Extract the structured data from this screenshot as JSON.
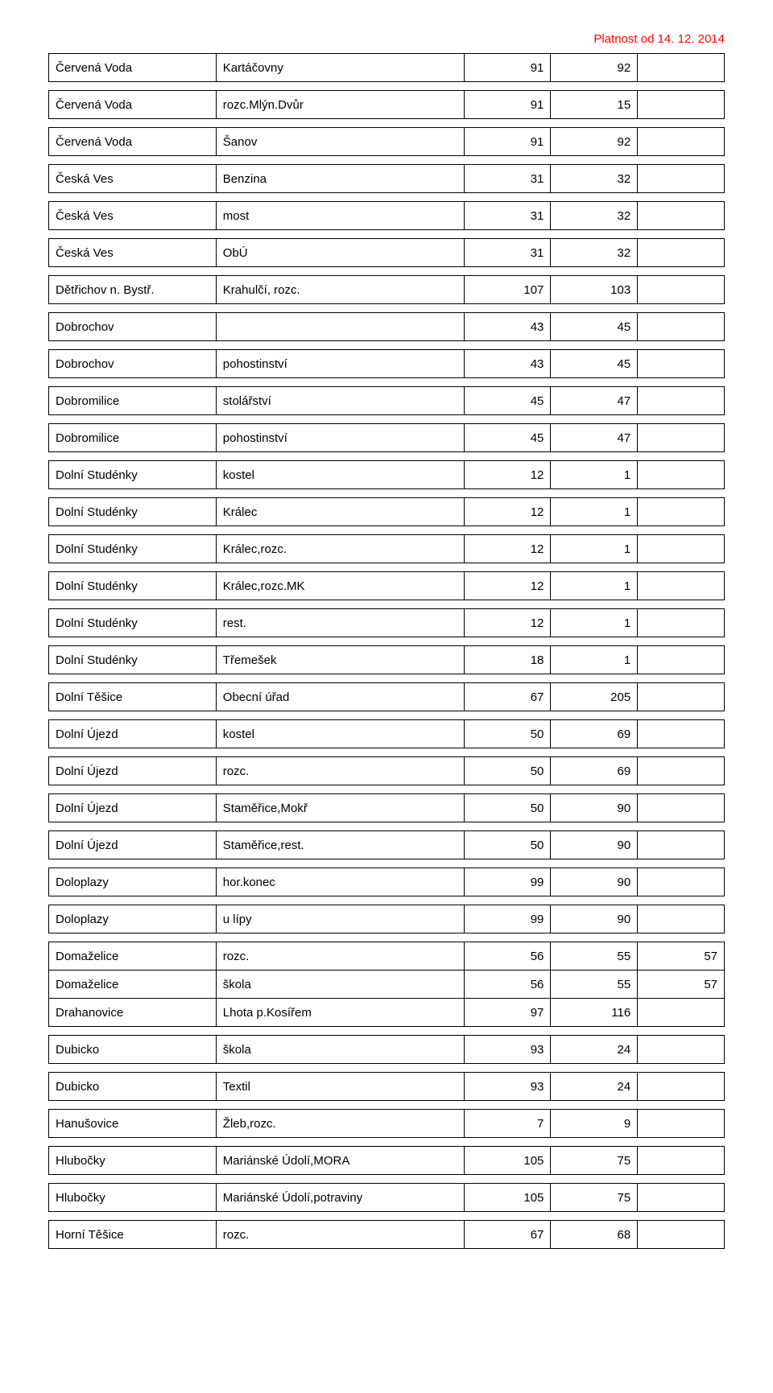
{
  "validity_text": "Platnost od 14. 12. 2014",
  "validity_color": "#ff0000",
  "table": {
    "border_color": "#000000",
    "font_size": 15,
    "rows": [
      {
        "c1": "Červená Voda",
        "c2": "Kartáčovny",
        "c3": "91",
        "c4": "92",
        "c5": "",
        "gap": true
      },
      {
        "c1": "Červená Voda",
        "c2": "rozc.Mlýn.Dvůr",
        "c3": "91",
        "c4": "15",
        "c5": "",
        "gap": true
      },
      {
        "c1": "Červená Voda",
        "c2": "Šanov",
        "c3": "91",
        "c4": "92",
        "c5": "",
        "gap": true
      },
      {
        "c1": "Česká Ves",
        "c2": "Benzina",
        "c3": "31",
        "c4": "32",
        "c5": "",
        "gap": true
      },
      {
        "c1": "Česká Ves",
        "c2": "most",
        "c3": "31",
        "c4": "32",
        "c5": "",
        "gap": true
      },
      {
        "c1": "Česká Ves",
        "c2": "ObÚ",
        "c3": "31",
        "c4": "32",
        "c5": "",
        "gap": true
      },
      {
        "c1": "Dětřichov n. Bystř.",
        "c2": "Krahulčí, rozc.",
        "c3": "107",
        "c4": "103",
        "c5": "",
        "gap": true
      },
      {
        "c1": "Dobrochov",
        "c2": "",
        "c3": "43",
        "c4": "45",
        "c5": "",
        "gap": true
      },
      {
        "c1": "Dobrochov",
        "c2": "pohostinství",
        "c3": "43",
        "c4": "45",
        "c5": "",
        "gap": true
      },
      {
        "c1": "Dobromilice",
        "c2": "stolářství",
        "c3": "45",
        "c4": "47",
        "c5": "",
        "gap": true
      },
      {
        "c1": "Dobromilice",
        "c2": "pohostinství",
        "c3": "45",
        "c4": "47",
        "c5": "",
        "gap": true
      },
      {
        "c1": "Dolní Studénky",
        "c2": "kostel",
        "c3": "12",
        "c4": "1",
        "c5": "",
        "gap": true
      },
      {
        "c1": "Dolní Studénky",
        "c2": "Králec",
        "c3": "12",
        "c4": "1",
        "c5": "",
        "gap": true
      },
      {
        "c1": "Dolní Studénky",
        "c2": "Králec,rozc.",
        "c3": "12",
        "c4": "1",
        "c5": "",
        "gap": true
      },
      {
        "c1": "Dolní Studénky",
        "c2": "Králec,rozc.MK",
        "c3": "12",
        "c4": "1",
        "c5": "",
        "gap": true
      },
      {
        "c1": "Dolní Studénky",
        "c2": "rest.",
        "c3": "12",
        "c4": "1",
        "c5": "",
        "gap": true
      },
      {
        "c1": "Dolní Studénky",
        "c2": "Třemešek",
        "c3": "18",
        "c4": "1",
        "c5": "",
        "gap": true
      },
      {
        "c1": "Dolní Těšice",
        "c2": "Obecní úřad",
        "c3": "67",
        "c4": "205",
        "c5": "",
        "gap": true
      },
      {
        "c1": "Dolní Újezd",
        "c2": "kostel",
        "c3": "50",
        "c4": "69",
        "c5": "",
        "gap": true
      },
      {
        "c1": "Dolní Újezd",
        "c2": "rozc.",
        "c3": "50",
        "c4": "69",
        "c5": "",
        "gap": true
      },
      {
        "c1": "Dolní Újezd",
        "c2": "Staměřice,Mokř",
        "c3": "50",
        "c4": "90",
        "c5": "",
        "gap": true
      },
      {
        "c1": "Dolní Újezd",
        "c2": "Staměřice,rest.",
        "c3": "50",
        "c4": "90",
        "c5": "",
        "gap": true
      },
      {
        "c1": "Doloplazy",
        "c2": "hor.konec",
        "c3": "99",
        "c4": "90",
        "c5": "",
        "gap": true
      },
      {
        "c1": "Doloplazy",
        "c2": "u lípy",
        "c3": "99",
        "c4": "90",
        "c5": "",
        "gap": true
      },
      {
        "c1": "Domaželice",
        "c2": "rozc.",
        "c3": "56",
        "c4": "55",
        "c5": "57",
        "gap": false
      },
      {
        "c1": "Domaželice",
        "c2": "škola",
        "c3": "56",
        "c4": "55",
        "c5": "57",
        "gap": false
      },
      {
        "c1": "Drahanovice",
        "c2": "Lhota p.Kosířem",
        "c3": "97",
        "c4": "116",
        "c5": "",
        "gap": true
      },
      {
        "c1": "Dubicko",
        "c2": "škola",
        "c3": "93",
        "c4": "24",
        "c5": "",
        "gap": true
      },
      {
        "c1": "Dubicko",
        "c2": "Textil",
        "c3": "93",
        "c4": "24",
        "c5": "",
        "gap": true
      },
      {
        "c1": "Hanušovice",
        "c2": "Žleb,rozc.",
        "c3": "7",
        "c4": "9",
        "c5": "",
        "gap": true
      },
      {
        "c1": "Hlubočky",
        "c2": "Mariánské Údolí,MORA",
        "c3": "105",
        "c4": "75",
        "c5": "",
        "gap": true
      },
      {
        "c1": "Hlubočky",
        "c2": "Mariánské Údolí,potraviny",
        "c3": "105",
        "c4": "75",
        "c5": "",
        "gap": true
      },
      {
        "c1": "Horní Těšice",
        "c2": "rozc.",
        "c3": "67",
        "c4": "68",
        "c5": "",
        "gap": false
      }
    ]
  }
}
